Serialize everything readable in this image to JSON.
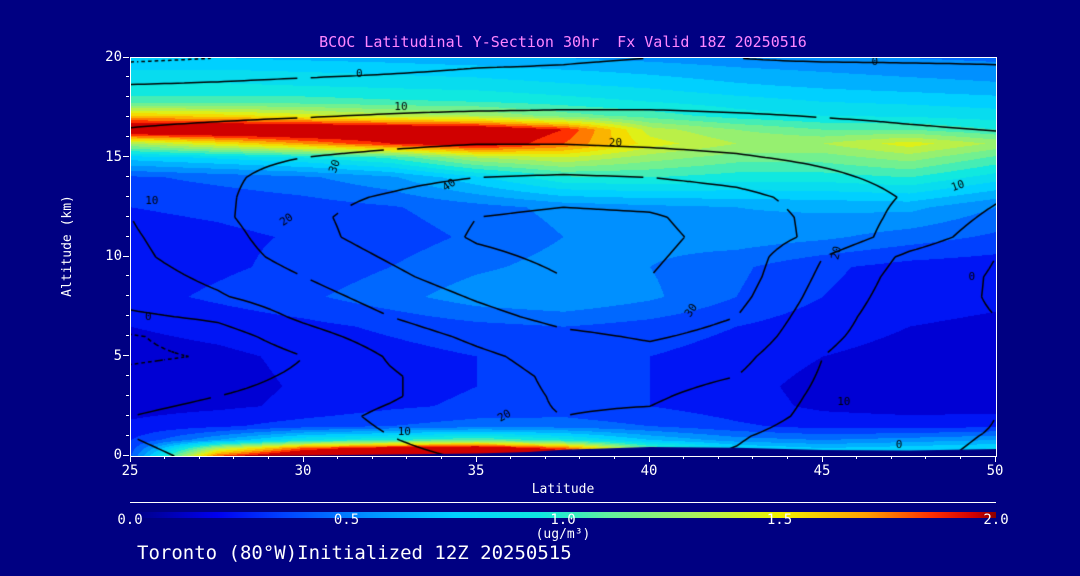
{
  "page": {
    "background": "#000082",
    "title_color": "#FF86FF"
  },
  "footer": {
    "caption": "Toronto (80°W)Initialized 12Z 20250515"
  },
  "chart_data": {
    "type": "heatmap",
    "subtype": "filled-contour latitudinal cross-section with overlaid line contours",
    "title": "BCOC Latitudinal Y-Section 30hr  Fx Valid 18Z 20250516",
    "xlabel": "Latitude",
    "ylabel": "Altitude (km)",
    "xlim": [
      25,
      50
    ],
    "ylim": [
      0,
      20
    ],
    "x_ticks": [
      25,
      30,
      35,
      40,
      45,
      50
    ],
    "x_minor_step": 1,
    "y_ticks": [
      0,
      5,
      10,
      15,
      20
    ],
    "y_minor_step": 1,
    "grid": "off",
    "colorbar": {
      "min": 0.0,
      "max": 2.0,
      "tick_labels": [
        "0.0",
        "0.5",
        "1.0",
        "1.5",
        "2.0"
      ],
      "units": "(ug/m³)",
      "stops": [
        [
          0.0,
          "#000080"
        ],
        [
          0.2,
          "#0000F0"
        ],
        [
          0.35,
          "#0040FF"
        ],
        [
          0.55,
          "#0090FF"
        ],
        [
          0.75,
          "#00D0FF"
        ],
        [
          0.95,
          "#10E8E0"
        ],
        [
          1.1,
          "#60F0A0"
        ],
        [
          1.3,
          "#A8F060"
        ],
        [
          1.5,
          "#F0F000"
        ],
        [
          1.7,
          "#FFA000"
        ],
        [
          1.85,
          "#FF3000"
        ],
        [
          1.95,
          "#D00000"
        ],
        [
          2.0,
          "#8B0000"
        ]
      ]
    },
    "fill_field": {
      "lat": [
        25,
        27.5,
        30,
        32.5,
        35,
        37.5,
        40,
        42.5,
        45,
        47.5,
        50
      ],
      "alt": [
        0,
        0.4,
        0.8,
        1.5,
        2.5,
        3.5,
        5,
        6.5,
        8,
        9.5,
        11,
        12.5,
        14,
        15,
        15.7,
        16.4,
        17.1,
        17.8,
        18.6,
        19.3,
        20
      ],
      "values": [
        [
          0.4,
          1.8,
          2.2,
          2.3,
          2.3,
          2.2,
          1.4,
          0.9,
          0.8,
          0.85,
          0.9
        ],
        [
          0.35,
          1.3,
          1.8,
          2.0,
          2.1,
          1.8,
          1.1,
          0.8,
          0.7,
          0.75,
          0.8
        ],
        [
          0.3,
          0.6,
          0.9,
          1.0,
          1.1,
          0.95,
          0.7,
          0.55,
          0.5,
          0.55,
          0.6
        ],
        [
          0.22,
          0.28,
          0.35,
          0.4,
          0.45,
          0.45,
          0.4,
          0.32,
          0.26,
          0.25,
          0.28
        ],
        [
          0.16,
          0.18,
          0.22,
          0.28,
          0.32,
          0.34,
          0.3,
          0.24,
          0.18,
          0.16,
          0.15
        ],
        [
          0.15,
          0.17,
          0.21,
          0.26,
          0.3,
          0.33,
          0.3,
          0.23,
          0.17,
          0.15,
          0.14
        ],
        [
          0.16,
          0.18,
          0.22,
          0.26,
          0.3,
          0.33,
          0.3,
          0.25,
          0.2,
          0.17,
          0.16
        ],
        [
          0.2,
          0.23,
          0.27,
          0.32,
          0.37,
          0.4,
          0.36,
          0.3,
          0.24,
          0.2,
          0.18
        ],
        [
          0.26,
          0.32,
          0.38,
          0.46,
          0.56,
          0.6,
          0.52,
          0.4,
          0.3,
          0.24,
          0.22
        ],
        [
          0.24,
          0.28,
          0.33,
          0.4,
          0.48,
          0.54,
          0.5,
          0.42,
          0.32,
          0.26,
          0.24
        ],
        [
          0.26,
          0.28,
          0.31,
          0.35,
          0.42,
          0.5,
          0.54,
          0.56,
          0.52,
          0.45,
          0.38
        ],
        [
          0.3,
          0.32,
          0.35,
          0.39,
          0.46,
          0.53,
          0.57,
          0.6,
          0.62,
          0.63,
          0.5
        ],
        [
          0.38,
          0.43,
          0.48,
          0.58,
          0.78,
          0.98,
          1.0,
          0.95,
          0.95,
          1.0,
          0.85
        ],
        [
          0.75,
          0.82,
          0.9,
          1.02,
          1.3,
          1.4,
          1.25,
          1.15,
          1.15,
          1.25,
          1.08
        ],
        [
          1.3,
          1.5,
          1.7,
          1.9,
          2.05,
          1.8,
          1.45,
          1.3,
          1.3,
          1.45,
          1.28
        ],
        [
          2.2,
          2.2,
          2.2,
          2.15,
          2.1,
          1.9,
          1.35,
          1.2,
          1.1,
          1.1,
          1.0
        ],
        [
          1.6,
          1.55,
          1.45,
          1.35,
          1.3,
          1.15,
          1.05,
          0.95,
          0.9,
          0.88,
          0.85
        ],
        [
          1.05,
          1.05,
          1.05,
          1.02,
          1.0,
          0.95,
          0.9,
          0.85,
          0.8,
          0.78,
          0.75
        ],
        [
          0.92,
          0.92,
          0.9,
          0.88,
          0.86,
          0.82,
          0.78,
          0.72,
          0.68,
          0.65,
          0.62
        ],
        [
          0.82,
          0.82,
          0.8,
          0.78,
          0.76,
          0.72,
          0.68,
          0.63,
          0.6,
          0.57,
          0.55
        ],
        [
          0.7,
          0.7,
          0.68,
          0.66,
          0.63,
          0.6,
          0.57,
          0.54,
          0.52,
          0.5,
          0.48
        ]
      ]
    },
    "contour_field": {
      "lat": [
        25,
        27.5,
        30,
        32.5,
        35,
        37.5,
        40,
        42.5,
        45,
        47.5,
        50
      ],
      "alt": [
        0,
        1,
        2,
        3,
        4,
        5,
        6,
        7,
        8,
        9,
        10,
        11,
        12,
        13,
        14,
        15,
        16,
        17,
        18,
        19,
        20
      ],
      "levels": [
        -10,
        0,
        10,
        20,
        30,
        40
      ],
      "negative_dashed": true,
      "values": [
        [
          -1,
          1,
          4,
          8,
          11,
          13,
          12,
          9,
          3,
          0.5,
          -0.5
        ],
        [
          0,
          2,
          5,
          10,
          14,
          16,
          15,
          11,
          5,
          0.8,
          -0.2
        ],
        [
          0,
          2,
          6,
          12,
          18,
          20,
          19,
          15,
          7,
          2,
          0
        ],
        [
          -2,
          0,
          4,
          9,
          16,
          21,
          21,
          17,
          8,
          3,
          0
        ],
        [
          -7,
          -4,
          2,
          9,
          16,
          22,
          23,
          20,
          9,
          3,
          0
        ],
        [
          -12,
          -9,
          0,
          11,
          18,
          24,
          27,
          23,
          10,
          3,
          0
        ],
        [
          -11,
          -5,
          6,
          15,
          22,
          28,
          31,
          27,
          12,
          4,
          0
        ],
        [
          -2,
          2,
          12,
          20,
          27,
          33,
          35,
          30,
          14,
          4,
          0
        ],
        [
          4,
          9,
          16,
          24,
          31,
          37,
          38,
          33,
          16,
          5,
          -1
        ],
        [
          6,
          12,
          20,
          28,
          35,
          40,
          40,
          35,
          18,
          6,
          -1
        ],
        [
          8,
          15,
          24,
          31,
          38,
          42,
          41,
          36,
          20,
          8,
          0
        ],
        [
          9,
          16,
          27,
          34,
          41,
          44,
          42,
          37,
          27,
          15,
          5
        ],
        [
          10,
          18,
          28,
          34,
          40,
          42,
          41,
          36,
          27,
          17,
          8
        ],
        [
          12,
          18,
          27,
          31,
          36,
          38,
          37,
          33,
          26,
          19,
          11
        ],
        [
          13,
          18,
          24,
          27,
          30,
          31,
          30,
          27,
          22,
          17,
          12
        ],
        [
          14,
          17,
          20,
          22,
          24,
          24,
          23,
          21,
          18,
          15,
          12
        ],
        [
          12,
          14,
          16,
          17,
          18,
          18,
          17,
          16,
          14,
          12,
          11
        ],
        [
          8,
          9,
          10,
          11,
          12,
          12,
          12,
          11,
          10,
          9,
          8
        ],
        [
          4,
          4,
          5,
          6,
          6,
          7,
          7,
          7,
          7,
          6,
          6
        ],
        [
          -2,
          -1,
          0,
          1,
          2,
          2,
          3,
          3,
          4,
          3,
          2
        ],
        [
          -12,
          -10,
          -6,
          -4,
          -2,
          -1,
          0,
          0,
          -1,
          -1,
          -1
        ]
      ]
    },
    "contour_labels": [
      {
        "v": 0,
        "lat": 31.6,
        "alt": 19.2,
        "rot": 0
      },
      {
        "v": 10,
        "lat": 32.8,
        "alt": 17.55,
        "rot": 0
      },
      {
        "v": 0,
        "lat": 46.5,
        "alt": 19.8,
        "rot": 0
      },
      {
        "v": 20,
        "lat": 39.0,
        "alt": 15.7,
        "rot": 0
      },
      {
        "v": 10,
        "lat": 48.9,
        "alt": 13.55,
        "rot": -20
      },
      {
        "v": 30,
        "lat": 30.9,
        "alt": 14.55,
        "rot": -70
      },
      {
        "v": 40,
        "lat": 34.2,
        "alt": 13.6,
        "rot": -35
      },
      {
        "v": 10,
        "lat": 25.6,
        "alt": 12.8,
        "rot": 0
      },
      {
        "v": 20,
        "lat": 29.5,
        "alt": 11.85,
        "rot": -35
      },
      {
        "v": 20,
        "lat": 45.4,
        "alt": 10.2,
        "rot": -75
      },
      {
        "v": 30,
        "lat": 41.2,
        "alt": 7.3,
        "rot": -55
      },
      {
        "v": 0,
        "lat": 25.5,
        "alt": 7.0,
        "rot": 0
      },
      {
        "v": 0,
        "lat": 49.3,
        "alt": 9.0,
        "rot": 0
      },
      {
        "v": 10,
        "lat": 45.6,
        "alt": 2.7,
        "rot": 0
      },
      {
        "v": 10,
        "lat": 32.9,
        "alt": 1.2,
        "rot": 0
      },
      {
        "v": 20,
        "lat": 35.8,
        "alt": 2.0,
        "rot": -30
      },
      {
        "v": 0,
        "lat": 47.2,
        "alt": 0.55,
        "rot": 0
      }
    ],
    "terrain": {
      "lat": [
        25,
        27.5,
        30,
        32.5,
        35,
        36.5,
        37.5,
        40,
        42.5,
        45,
        47.5,
        50
      ],
      "height": [
        0,
        0,
        0.02,
        0.08,
        0.12,
        0.2,
        0.32,
        0.45,
        0.42,
        0.3,
        0.28,
        0.35
      ]
    }
  }
}
